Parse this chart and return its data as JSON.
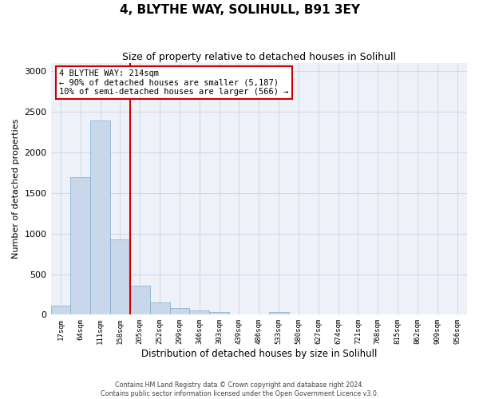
{
  "title": "4, BLYTHE WAY, SOLIHULL, B91 3EY",
  "subtitle": "Size of property relative to detached houses in Solihull",
  "xlabel": "Distribution of detached houses by size in Solihull",
  "ylabel": "Number of detached properties",
  "footer_line1": "Contains HM Land Registry data © Crown copyright and database right 2024.",
  "footer_line2": "Contains public sector information licensed under the Open Government Licence v3.0.",
  "annotation_title": "4 BLYTHE WAY: 214sqm",
  "annotation_line1": "← 90% of detached houses are smaller (5,187)",
  "annotation_line2": "10% of semi-detached houses are larger (566) →",
  "bar_color": "#c8d8ea",
  "bar_edge_color": "#7aaed0",
  "red_line_color": "#cc0000",
  "annotation_box_color": "#cc0000",
  "grid_color": "#d0daea",
  "bg_color": "#eef2f8",
  "bins": [
    "17sqm",
    "64sqm",
    "111sqm",
    "158sqm",
    "205sqm",
    "252sqm",
    "299sqm",
    "346sqm",
    "393sqm",
    "439sqm",
    "486sqm",
    "533sqm",
    "580sqm",
    "627sqm",
    "674sqm",
    "721sqm",
    "768sqm",
    "815sqm",
    "862sqm",
    "909sqm"
  ],
  "values": [
    110,
    1700,
    2390,
    930,
    355,
    150,
    78,
    52,
    32,
    5,
    5,
    30,
    5,
    0,
    0,
    0,
    0,
    0,
    0,
    0
  ],
  "extra_tick": "956sqm",
  "red_line_x": 3.5,
  "ylim": [
    0,
    3100
  ],
  "yticks": [
    0,
    500,
    1000,
    1500,
    2000,
    2500,
    3000
  ]
}
